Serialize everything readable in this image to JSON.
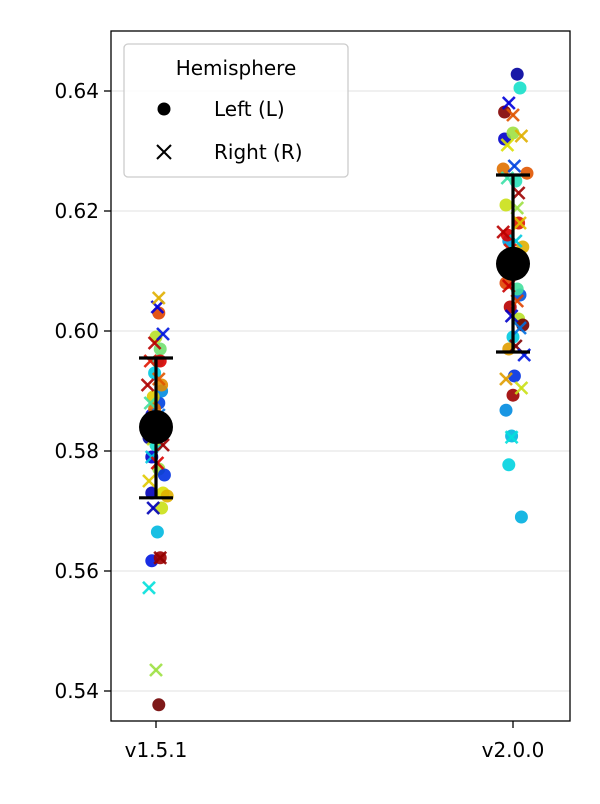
{
  "chart_data": {
    "type": "scatter",
    "categories": [
      "v1.5.1",
      "v2.0.0"
    ],
    "yticks": [
      "0.54",
      "0.56",
      "0.58",
      "0.60",
      "0.62",
      "0.64"
    ],
    "ylim": [
      0.533,
      0.648
    ],
    "grid": "horizontal",
    "legend": {
      "title": "Hemisphere",
      "placement": "top-left",
      "entries": [
        {
          "label": "Left (L)",
          "marker": "circle"
        },
        {
          "label": "Right (R)",
          "marker": "x"
        }
      ]
    },
    "summary": [
      {
        "category": "v1.5.1",
        "mean": 0.584,
        "lower": 0.5722,
        "upper": 0.5955
      },
      {
        "category": "v2.0.0",
        "mean": 0.6112,
        "lower": 0.5965,
        "upper": 0.626
      }
    ],
    "colormap": "jet",
    "points": [
      {
        "cat": 0,
        "jitter": -0.05,
        "y": 0.5822,
        "hemi": "L",
        "c": 0.05
      },
      {
        "cat": 0,
        "jitter": -0.03,
        "y": 0.586,
        "hemi": "L",
        "c": 0.12
      },
      {
        "cat": 0,
        "jitter": 0.02,
        "y": 0.588,
        "hemi": "L",
        "c": 0.2
      },
      {
        "cat": 0,
        "jitter": 0.04,
        "y": 0.59,
        "hemi": "L",
        "c": 0.28
      },
      {
        "cat": 0,
        "jitter": -0.01,
        "y": 0.593,
        "hemi": "L",
        "c": 0.35
      },
      {
        "cat": 0,
        "jitter": 0.01,
        "y": 0.595,
        "hemi": "L",
        "c": 0.42
      },
      {
        "cat": 0,
        "jitter": 0.03,
        "y": 0.597,
        "hemi": "L",
        "c": 0.5
      },
      {
        "cat": 0,
        "jitter": 0.0,
        "y": 0.599,
        "hemi": "L",
        "c": 0.58
      },
      {
        "cat": 0,
        "jitter": 0.02,
        "y": 0.603,
        "hemi": "L",
        "c": 0.8
      },
      {
        "cat": 0,
        "jitter": -0.02,
        "y": 0.589,
        "hemi": "L",
        "c": 0.65
      },
      {
        "cat": 0,
        "jitter": 0.04,
        "y": 0.591,
        "hemi": "L",
        "c": 0.72
      },
      {
        "cat": 0,
        "jitter": 0.03,
        "y": 0.595,
        "hemi": "L",
        "c": 0.88
      },
      {
        "cat": 0,
        "jitter": -0.02,
        "y": 0.584,
        "hemi": "L",
        "c": 0.3
      },
      {
        "cat": 0,
        "jitter": 0.01,
        "y": 0.582,
        "hemi": "L",
        "c": 0.45
      },
      {
        "cat": 0,
        "jitter": -0.03,
        "y": 0.579,
        "hemi": "L",
        "c": 0.1
      },
      {
        "cat": 0,
        "jitter": 0.02,
        "y": 0.577,
        "hemi": "L",
        "c": 0.55
      },
      {
        "cat": 0,
        "jitter": 0.06,
        "y": 0.576,
        "hemi": "L",
        "c": 0.18
      },
      {
        "cat": 0,
        "jitter": -0.03,
        "y": 0.573,
        "hemi": "L",
        "c": 0.08
      },
      {
        "cat": 0,
        "jitter": 0.05,
        "y": 0.573,
        "hemi": "L",
        "c": 0.62
      },
      {
        "cat": 0,
        "jitter": 0.08,
        "y": 0.5725,
        "hemi": "L",
        "c": 0.68
      },
      {
        "cat": 0,
        "jitter": 0.04,
        "y": 0.5705,
        "hemi": "L",
        "c": 0.6
      },
      {
        "cat": 0,
        "jitter": 0.01,
        "y": 0.5665,
        "hemi": "L",
        "c": 0.33
      },
      {
        "cat": 0,
        "jitter": -0.03,
        "y": 0.5617,
        "hemi": "L",
        "c": 0.15
      },
      {
        "cat": 0,
        "jitter": 0.03,
        "y": 0.5622,
        "hemi": "L",
        "c": 0.95
      },
      {
        "cat": 0,
        "jitter": 0.02,
        "y": 0.5377,
        "hemi": "L",
        "c": 1.0
      },
      {
        "cat": 0,
        "jitter": -0.01,
        "y": 0.587,
        "hemi": "L",
        "c": 0.75
      },
      {
        "cat": 0,
        "jitter": 0.0,
        "y": 0.581,
        "hemi": "L",
        "c": 0.4
      },
      {
        "cat": 0,
        "jitter": -0.04,
        "y": 0.595,
        "hemi": "R",
        "c": 0.85
      },
      {
        "cat": 0,
        "jitter": -0.01,
        "y": 0.598,
        "hemi": "R",
        "c": 0.92
      },
      {
        "cat": 0,
        "jitter": 0.01,
        "y": 0.604,
        "hemi": "R",
        "c": 0.12
      },
      {
        "cat": 0,
        "jitter": 0.02,
        "y": 0.6055,
        "hemi": "R",
        "c": 0.68
      },
      {
        "cat": 0,
        "jitter": 0.05,
        "y": 0.5995,
        "hemi": "R",
        "c": 0.15
      },
      {
        "cat": 0,
        "jitter": -0.06,
        "y": 0.591,
        "hemi": "R",
        "c": 0.93
      },
      {
        "cat": 0,
        "jitter": -0.04,
        "y": 0.588,
        "hemi": "R",
        "c": 0.45
      },
      {
        "cat": 0,
        "jitter": 0.02,
        "y": 0.586,
        "hemi": "R",
        "c": 0.25
      },
      {
        "cat": 0,
        "jitter": -0.02,
        "y": 0.582,
        "hemi": "R",
        "c": 0.6
      },
      {
        "cat": 0,
        "jitter": 0.05,
        "y": 0.581,
        "hemi": "R",
        "c": 0.95
      },
      {
        "cat": 0,
        "jitter": -0.03,
        "y": 0.579,
        "hemi": "R",
        "c": 0.35
      },
      {
        "cat": 0,
        "jitter": 0.01,
        "y": 0.578,
        "hemi": "R",
        "c": 0.88
      },
      {
        "cat": 0,
        "jitter": -0.05,
        "y": 0.575,
        "hemi": "R",
        "c": 0.65
      },
      {
        "cat": 0,
        "jitter": -0.02,
        "y": 0.5705,
        "hemi": "R",
        "c": 0.08
      },
      {
        "cat": 0,
        "jitter": 0.03,
        "y": 0.5622,
        "hemi": "R",
        "c": 0.96
      },
      {
        "cat": 0,
        "jitter": -0.05,
        "y": 0.5572,
        "hemi": "R",
        "c": 0.38
      },
      {
        "cat": 0,
        "jitter": 0.0,
        "y": 0.5435,
        "hemi": "R",
        "c": 0.55
      },
      {
        "cat": 0,
        "jitter": 0.02,
        "y": 0.592,
        "hemi": "R",
        "c": 0.78
      },
      {
        "cat": 1,
        "jitter": 0.03,
        "y": 0.6428,
        "hemi": "L",
        "c": 0.05
      },
      {
        "cat": 1,
        "jitter": 0.05,
        "y": 0.6405,
        "hemi": "L",
        "c": 0.4
      },
      {
        "cat": 1,
        "jitter": -0.06,
        "y": 0.6365,
        "hemi": "L",
        "c": 0.98
      },
      {
        "cat": 1,
        "jitter": -0.06,
        "y": 0.632,
        "hemi": "L",
        "c": 0.1
      },
      {
        "cat": 1,
        "jitter": 0.0,
        "y": 0.633,
        "hemi": "L",
        "c": 0.55
      },
      {
        "cat": 1,
        "jitter": -0.07,
        "y": 0.627,
        "hemi": "L",
        "c": 0.75
      },
      {
        "cat": 1,
        "jitter": 0.1,
        "y": 0.6263,
        "hemi": "L",
        "c": 0.78
      },
      {
        "cat": 1,
        "jitter": 0.02,
        "y": 0.625,
        "hemi": "L",
        "c": 0.42
      },
      {
        "cat": 1,
        "jitter": -0.05,
        "y": 0.621,
        "hemi": "L",
        "c": 0.6
      },
      {
        "cat": 1,
        "jitter": 0.04,
        "y": 0.618,
        "hemi": "L",
        "c": 0.85
      },
      {
        "cat": 1,
        "jitter": -0.03,
        "y": 0.615,
        "hemi": "L",
        "c": 0.3
      },
      {
        "cat": 1,
        "jitter": 0.07,
        "y": 0.614,
        "hemi": "L",
        "c": 0.68
      },
      {
        "cat": 1,
        "jitter": -0.04,
        "y": 0.612,
        "hemi": "L",
        "c": 0.15
      },
      {
        "cat": 1,
        "jitter": 0.02,
        "y": 0.61,
        "hemi": "L",
        "c": 0.5
      },
      {
        "cat": 1,
        "jitter": -0.05,
        "y": 0.608,
        "hemi": "L",
        "c": 0.8
      },
      {
        "cat": 1,
        "jitter": 0.05,
        "y": 0.606,
        "hemi": "L",
        "c": 0.22
      },
      {
        "cat": 1,
        "jitter": -0.02,
        "y": 0.604,
        "hemi": "L",
        "c": 0.92
      },
      {
        "cat": 1,
        "jitter": 0.04,
        "y": 0.602,
        "hemi": "L",
        "c": 0.58
      },
      {
        "cat": 1,
        "jitter": 0.07,
        "y": 0.601,
        "hemi": "L",
        "c": 1.0
      },
      {
        "cat": 1,
        "jitter": 0.0,
        "y": 0.599,
        "hemi": "L",
        "c": 0.35
      },
      {
        "cat": 1,
        "jitter": -0.03,
        "y": 0.597,
        "hemi": "L",
        "c": 0.7
      },
      {
        "cat": 1,
        "jitter": 0.01,
        "y": 0.5925,
        "hemi": "L",
        "c": 0.18
      },
      {
        "cat": 1,
        "jitter": 0.0,
        "y": 0.5893,
        "hemi": "L",
        "c": 0.95
      },
      {
        "cat": 1,
        "jitter": -0.05,
        "y": 0.5868,
        "hemi": "L",
        "c": 0.28
      },
      {
        "cat": 1,
        "jitter": -0.01,
        "y": 0.5825,
        "hemi": "L",
        "c": 0.33
      },
      {
        "cat": 1,
        "jitter": -0.03,
        "y": 0.5777,
        "hemi": "L",
        "c": 0.36
      },
      {
        "cat": 1,
        "jitter": 0.06,
        "y": 0.569,
        "hemi": "L",
        "c": 0.32
      },
      {
        "cat": 1,
        "jitter": 0.03,
        "y": 0.607,
        "hemi": "L",
        "c": 0.45
      },
      {
        "cat": 1,
        "jitter": -0.04,
        "y": 0.616,
        "hemi": "L",
        "c": 0.88
      },
      {
        "cat": 1,
        "jitter": -0.03,
        "y": 0.638,
        "hemi": "R",
        "c": 0.12
      },
      {
        "cat": 1,
        "jitter": 0.0,
        "y": 0.636,
        "hemi": "R",
        "c": 0.78
      },
      {
        "cat": 1,
        "jitter": 0.06,
        "y": 0.6325,
        "hemi": "R",
        "c": 0.68
      },
      {
        "cat": 1,
        "jitter": -0.04,
        "y": 0.631,
        "hemi": "R",
        "c": 0.62
      },
      {
        "cat": 1,
        "jitter": 0.01,
        "y": 0.6275,
        "hemi": "R",
        "c": 0.2
      },
      {
        "cat": 1,
        "jitter": 0.04,
        "y": 0.623,
        "hemi": "R",
        "c": 0.95
      },
      {
        "cat": 1,
        "jitter": -0.07,
        "y": 0.6165,
        "hemi": "R",
        "c": 0.92
      },
      {
        "cat": 1,
        "jitter": 0.05,
        "y": 0.618,
        "hemi": "R",
        "c": 0.66
      },
      {
        "cat": 1,
        "jitter": 0.03,
        "y": 0.6205,
        "hemi": "R",
        "c": 0.55
      },
      {
        "cat": 1,
        "jitter": -0.02,
        "y": 0.6135,
        "hemi": "R",
        "c": 0.85
      },
      {
        "cat": 1,
        "jitter": 0.06,
        "y": 0.611,
        "hemi": "R",
        "c": 0.4
      },
      {
        "cat": 1,
        "jitter": -0.03,
        "y": 0.6075,
        "hemi": "R",
        "c": 0.9
      },
      {
        "cat": 1,
        "jitter": 0.03,
        "y": 0.605,
        "hemi": "R",
        "c": 0.8
      },
      {
        "cat": 1,
        "jitter": -0.01,
        "y": 0.6025,
        "hemi": "R",
        "c": 0.1
      },
      {
        "cat": 1,
        "jitter": 0.05,
        "y": 0.6005,
        "hemi": "R",
        "c": 0.25
      },
      {
        "cat": 1,
        "jitter": 0.02,
        "y": 0.5975,
        "hemi": "R",
        "c": 0.98
      },
      {
        "cat": 1,
        "jitter": 0.08,
        "y": 0.596,
        "hemi": "R",
        "c": 0.15
      },
      {
        "cat": 1,
        "jitter": -0.05,
        "y": 0.592,
        "hemi": "R",
        "c": 0.7
      },
      {
        "cat": 1,
        "jitter": 0.06,
        "y": 0.5905,
        "hemi": "R",
        "c": 0.6
      },
      {
        "cat": 1,
        "jitter": -0.01,
        "y": 0.5823,
        "hemi": "R",
        "c": 0.38
      },
      {
        "cat": 1,
        "jitter": 0.02,
        "y": 0.615,
        "hemi": "R",
        "c": 0.35
      },
      {
        "cat": 1,
        "jitter": -0.04,
        "y": 0.6255,
        "hemi": "R",
        "c": 0.44
      }
    ]
  }
}
